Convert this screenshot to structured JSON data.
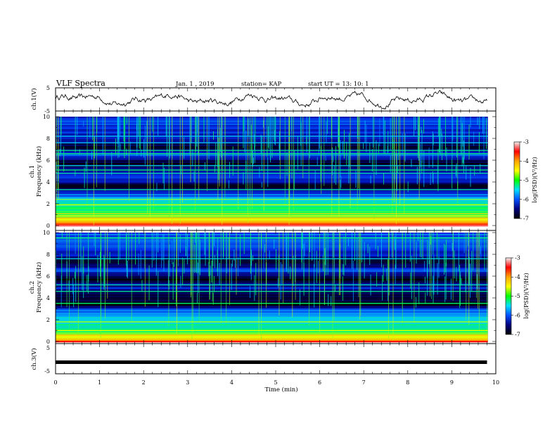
{
  "header": {
    "title": "VLF Spectra",
    "date": "Jan. 1 , 2019",
    "station": "station= KAP",
    "start": "start UT = 13: 10: 1"
  },
  "colorbar": {
    "label": "log(PSD)(V²/Hz)",
    "ticks": [
      "-3",
      "-4",
      "-5",
      "-6",
      "-7"
    ],
    "colors": [
      "#f0f0f0",
      "#ff0000",
      "#ffa500",
      "#ffff00",
      "#00ff00",
      "#00e0ff",
      "#0050ff",
      "#000080",
      "#000000"
    ]
  },
  "chart_data": [
    {
      "type": "line",
      "title": "VLF Spectra",
      "ylabel": "ch.1(V)",
      "ylim": [
        -5,
        5
      ],
      "yticks": [
        "5",
        "-5"
      ],
      "xlim": [
        0,
        10
      ],
      "description_series": "ch.1 waveform amplitude, oscillating roughly between -2 and 2 V"
    },
    {
      "type": "heatmap",
      "ylabel_top": "ch.1",
      "ylabel": "Frequency (kHz)",
      "ylim": [
        0,
        10
      ],
      "yticks": [
        "0",
        "2",
        "4",
        "6",
        "8",
        "10"
      ],
      "xlim": [
        0,
        10
      ],
      "zlim": [
        -7,
        -3
      ],
      "zlabel": "log(PSD)(V²/Hz)",
      "band_profile": [
        {
          "f": 0.0,
          "z": -3.3
        },
        {
          "f": 0.3,
          "z": -4.2
        },
        {
          "f": 0.8,
          "z": -4.8
        },
        {
          "f": 1.5,
          "z": -5.3
        },
        {
          "f": 2.2,
          "z": -5.4
        },
        {
          "f": 2.8,
          "z": -6.0
        },
        {
          "f": 3.2,
          "z": -6.3
        },
        {
          "f": 3.6,
          "z": -6.9
        },
        {
          "f": 4.4,
          "z": -6.1
        },
        {
          "f": 5.0,
          "z": -6.3
        },
        {
          "f": 5.8,
          "z": -6.9
        },
        {
          "f": 6.6,
          "z": -5.9
        },
        {
          "f": 7.2,
          "z": -6.9
        },
        {
          "f": 8.0,
          "z": -6.4
        },
        {
          "f": 9.0,
          "z": -6.2
        },
        {
          "f": 10.0,
          "z": -6.2
        }
      ],
      "lines": [
        {
          "f": 0.7,
          "z": -4.3
        },
        {
          "f": 1.1,
          "z": -4.5
        },
        {
          "f": 1.9,
          "z": -4.7
        },
        {
          "f": 2.4,
          "z": -4.9
        },
        {
          "f": 3.3,
          "z": -5.4
        },
        {
          "f": 4.8,
          "z": -5.5
        },
        {
          "f": 5.1,
          "z": -5.3
        },
        {
          "f": 5.5,
          "z": -5.6
        },
        {
          "f": 6.6,
          "z": -5.3
        },
        {
          "f": 6.9,
          "z": -5.4
        },
        {
          "f": 7.6,
          "z": -5.7
        },
        {
          "f": 8.2,
          "z": -5.7
        }
      ]
    },
    {
      "type": "heatmap",
      "ylabel_top": "ch.2",
      "ylabel": "Frequency (kHz)",
      "ylim": [
        0,
        10
      ],
      "yticks": [
        "0",
        "2",
        "4",
        "6",
        "8",
        "10"
      ],
      "xlim": [
        0,
        10
      ],
      "zlim": [
        -7,
        -3
      ],
      "zlabel": "log(PSD)(V²/Hz)",
      "band_profile": [
        {
          "f": 0.0,
          "z": -3.6
        },
        {
          "f": 0.3,
          "z": -4.4
        },
        {
          "f": 1.0,
          "z": -5.2
        },
        {
          "f": 2.0,
          "z": -5.6
        },
        {
          "f": 3.0,
          "z": -6.1
        },
        {
          "f": 3.4,
          "z": -6.9
        },
        {
          "f": 4.2,
          "z": -6.8
        },
        {
          "f": 5.0,
          "z": -6.3
        },
        {
          "f": 5.8,
          "z": -6.9
        },
        {
          "f": 6.6,
          "z": -6.1
        },
        {
          "f": 7.3,
          "z": -6.9
        },
        {
          "f": 8.0,
          "z": -6.3
        },
        {
          "f": 9.0,
          "z": -6.0
        },
        {
          "f": 10.0,
          "z": -6.1
        }
      ],
      "lines": [
        {
          "f": 0.6,
          "z": -4.4
        },
        {
          "f": 1.0,
          "z": -4.7
        },
        {
          "f": 1.8,
          "z": -4.8
        },
        {
          "f": 3.5,
          "z": -5.2
        },
        {
          "f": 4.6,
          "z": -5.4
        },
        {
          "f": 5.2,
          "z": -5.5
        },
        {
          "f": 7.6,
          "z": -5.6
        },
        {
          "f": 9.5,
          "z": -5.3
        }
      ]
    },
    {
      "type": "line",
      "ylabel": "ch.3(V)",
      "xlabel": "Time (min)",
      "ylim": [
        -5,
        5
      ],
      "yticks": [
        "5",
        "-5"
      ],
      "xlim": [
        0,
        10
      ],
      "xticks": [
        "0",
        "1",
        "2",
        "3",
        "4",
        "5",
        "6",
        "7",
        "8",
        "9",
        "10"
      ],
      "series": [
        {
          "x": [
            0,
            9.8
          ],
          "y": [
            -1.5,
            -1.5
          ]
        }
      ]
    }
  ]
}
